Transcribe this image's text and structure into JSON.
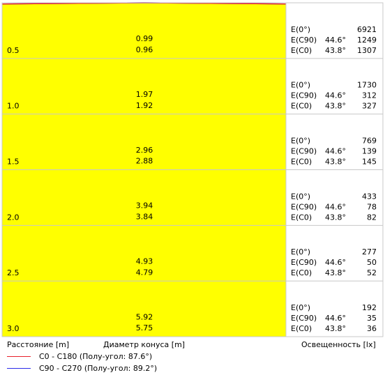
{
  "chart_data": {
    "type": "cone-diagram",
    "rows": [
      {
        "distance": "0.5",
        "diameter_c0": "0.99",
        "diameter_c90": "0.96",
        "e0": "6921",
        "c90_angle": "44.6°",
        "c90_value": "1249",
        "c0_angle": "43.8°",
        "c0_value": "1307"
      },
      {
        "distance": "1.0",
        "diameter_c0": "1.97",
        "diameter_c90": "1.92",
        "e0": "1730",
        "c90_angle": "44.6°",
        "c90_value": "312",
        "c0_angle": "43.8°",
        "c0_value": "327"
      },
      {
        "distance": "1.5",
        "diameter_c0": "2.96",
        "diameter_c90": "2.88",
        "e0": "769",
        "c90_angle": "44.6°",
        "c90_value": "139",
        "c0_angle": "43.8°",
        "c0_value": "145"
      },
      {
        "distance": "2.0",
        "diameter_c0": "3.94",
        "diameter_c90": "3.84",
        "e0": "433",
        "c90_angle": "44.6°",
        "c90_value": "78",
        "c0_angle": "43.8°",
        "c0_value": "82"
      },
      {
        "distance": "2.5",
        "diameter_c0": "4.93",
        "diameter_c90": "4.79",
        "e0": "277",
        "c90_angle": "44.6°",
        "c90_value": "50",
        "c0_angle": "43.8°",
        "c0_value": "52"
      },
      {
        "distance": "3.0",
        "diameter_c0": "5.92",
        "diameter_c90": "5.75",
        "e0": "192",
        "c90_angle": "44.6°",
        "c90_value": "35",
        "c0_angle": "43.8°",
        "c0_value": "36"
      }
    ],
    "labels": {
      "e0": "E(0°)",
      "ec90": "E(C90)",
      "ec0": "E(C0)"
    },
    "series": [
      {
        "name": "C0 - C180 (Полу-угол: 87.6°)",
        "half_angle": 87.6,
        "color": "#e8202a"
      },
      {
        "name": "C90 - C270 (Полу-угол: 89.2°)",
        "half_angle": 89.2,
        "color": "#2a2ae8"
      }
    ],
    "cone_color": "#ffff00",
    "grid_color": "#c8c8c8"
  },
  "footer": {
    "distance_label": "Расстояние [m]",
    "diameter_label": "Диаметр конуса [m]",
    "illuminance_label": "Освещенность [lx]"
  }
}
